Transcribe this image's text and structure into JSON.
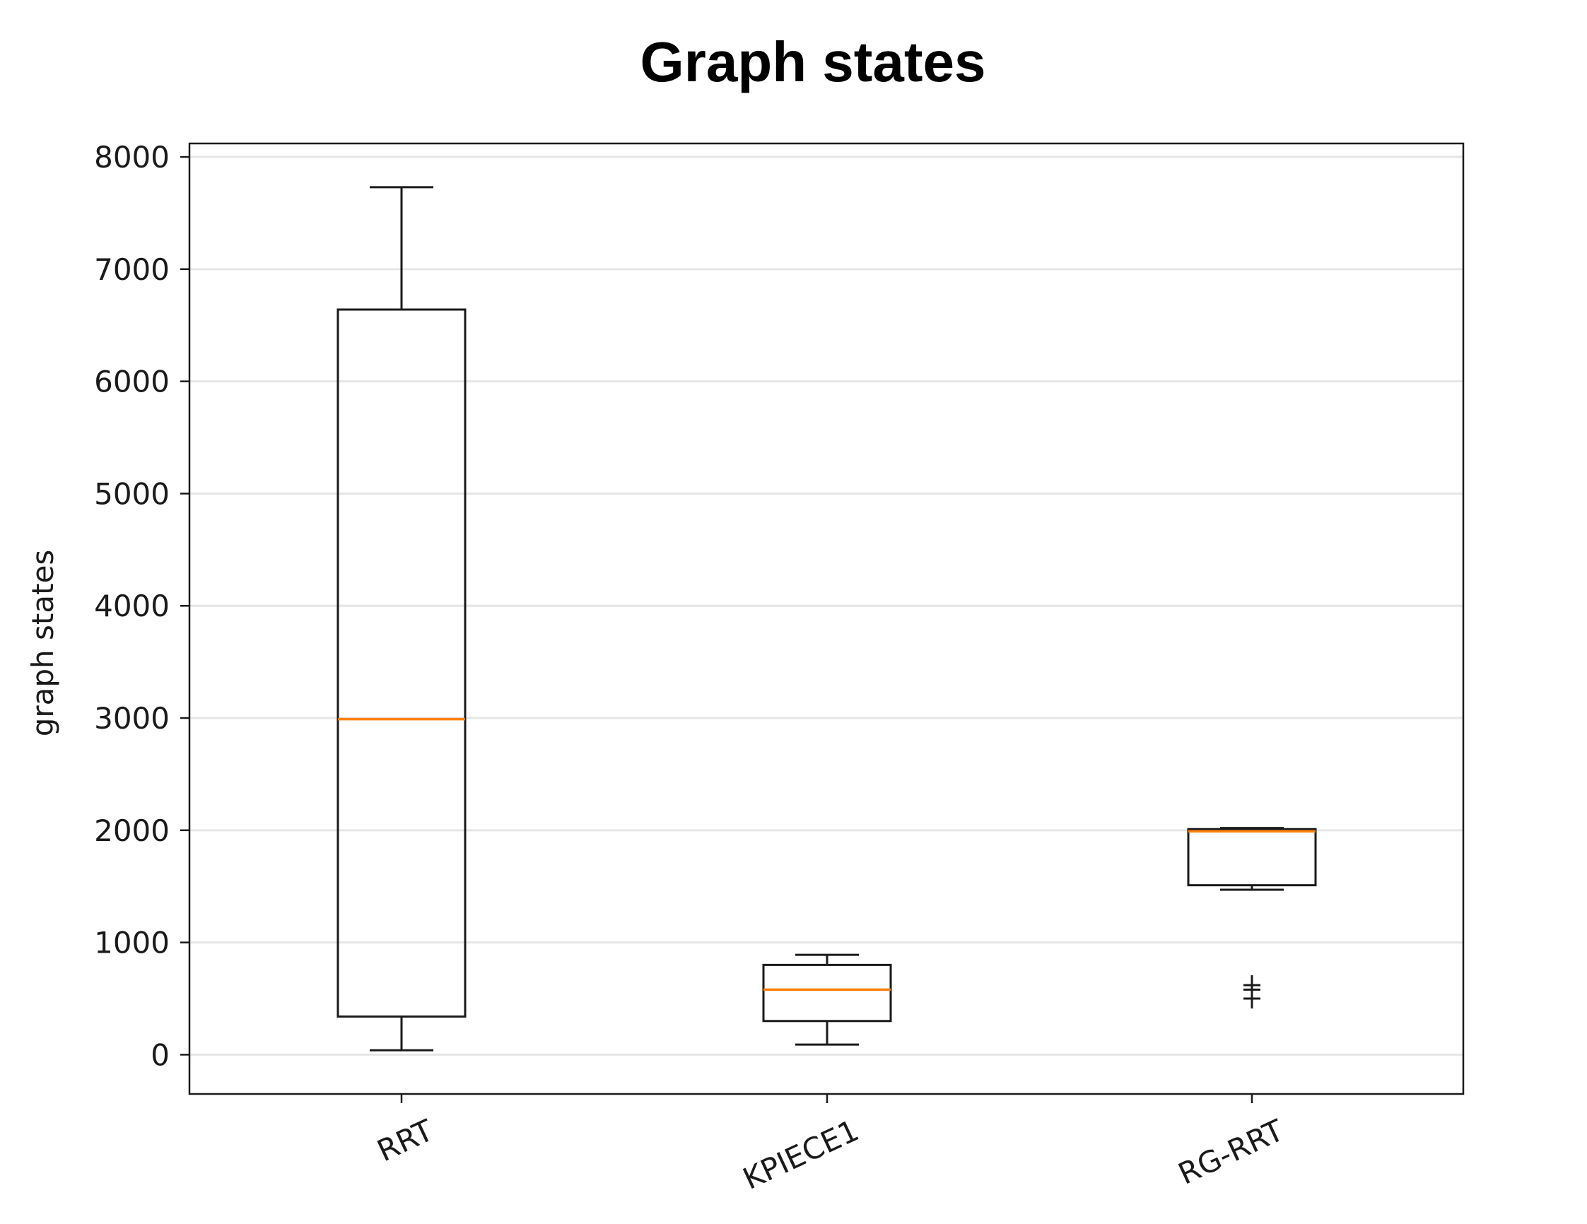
{
  "chart_data": {
    "type": "box",
    "title": "Graph states",
    "xlabel": "",
    "ylabel": "graph states",
    "ylim": [
      -350,
      8120
    ],
    "yticks": [
      0,
      1000,
      2000,
      3000,
      4000,
      5000,
      6000,
      7000,
      8000
    ],
    "grid": "horizontal",
    "categories": [
      "RRT",
      "KPIECE1",
      "RG-RRT"
    ],
    "boxes": [
      {
        "label": "RRT",
        "whisker_low": 40,
        "q1": 340,
        "median": 2990,
        "q3": 6640,
        "whisker_high": 7730,
        "outliers": []
      },
      {
        "label": "KPIECE1",
        "whisker_low": 90,
        "q1": 300,
        "median": 580,
        "q3": 800,
        "whisker_high": 890,
        "outliers": []
      },
      {
        "label": "RG-RRT",
        "whisker_low": 1470,
        "q1": 1510,
        "median": 1990,
        "q3": 2010,
        "whisker_high": 2020,
        "outliers": [
          500,
          580,
          620
        ]
      }
    ],
    "colors": {
      "box": "#1a1a1a",
      "median": "#ff7f0e",
      "grid": "#e6e6e6"
    }
  }
}
